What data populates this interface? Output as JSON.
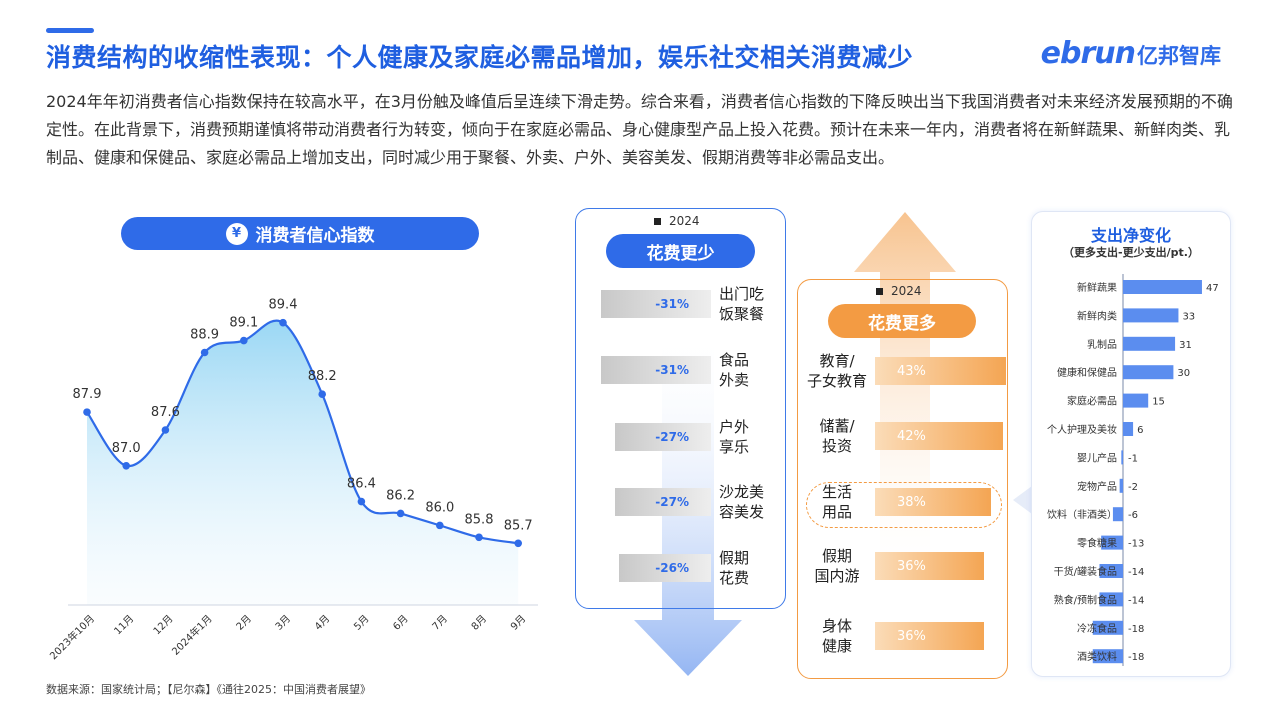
{
  "title": "消费结构的收缩性表现：个人健康及家庭必需品增加，娱乐社交相关消费减少",
  "logo": {
    "en": "ebrun",
    "cn": "亿邦智库"
  },
  "intro": "2024年年初消费者信心指数保持在较高水平，在3月份触及峰值后呈连续下滑走势。综合来看，消费者信心指数的下降反映出当下我国消费者对未来经济发展预期的不确定性。在此背景下，消费预期谨慎将带动消费者行为转变，倾向于在家庭必需品、身心健康型产品上投入花费。预计在未来一年内，消费者将在新鲜蔬果、新鲜肉类、乳制品、健康和保健品、家庭必需品上增加支出，同时减少用于聚餐、外卖、户外、美容美发、假期消费等非必需品支出。",
  "source": "数据来源：国家统计局；【尼尔森】《通往2025：中国消费者展望》",
  "colors": {
    "primary": "#2f6be8",
    "orange": "#f39b43"
  },
  "icons": {
    "confidence": "yuan-hand-icon"
  },
  "chart_data": [
    {
      "type": "area",
      "title": "消费者信心指数",
      "categories": [
        "2023年10月",
        "11月",
        "12月",
        "2024年1月",
        "2月",
        "3月",
        "4月",
        "5月",
        "6月",
        "7月",
        "8月",
        "9月"
      ],
      "values": [
        87.9,
        87.0,
        87.6,
        88.9,
        89.1,
        89.4,
        88.2,
        86.4,
        86.2,
        86.0,
        85.8,
        85.7
      ],
      "ylim": [
        85.0,
        90.2
      ]
    },
    {
      "type": "bar",
      "title": "花费更少",
      "year": "2024",
      "categories": [
        "出门吃饭聚餐",
        "食品外卖",
        "户外享乐",
        "沙龙美容美发",
        "假期花费"
      ],
      "category_lines": [
        [
          "出门吃",
          "饭聚餐"
        ],
        [
          "食品",
          "外卖"
        ],
        [
          "户外",
          "享乐"
        ],
        [
          "沙龙美",
          "容美发"
        ],
        [
          "假期",
          "花费"
        ]
      ],
      "values": [
        -31,
        -31,
        -27,
        -27,
        -26
      ],
      "labels": [
        "-31%",
        "-31%",
        "-27%",
        "-27%",
        "-26%"
      ]
    },
    {
      "type": "bar",
      "title": "花费更多",
      "year": "2024",
      "categories": [
        "教育/子女教育",
        "储蓄/投资",
        "生活用品",
        "假期国内游",
        "身体健康"
      ],
      "category_lines": [
        [
          "教育/",
          "子女教育"
        ],
        [
          "储蓄/",
          "投资"
        ],
        [
          "生活",
          "用品"
        ],
        [
          "假期",
          "国内游"
        ],
        [
          "身体",
          "健康"
        ]
      ],
      "values": [
        43,
        42,
        38,
        36,
        36
      ],
      "labels": [
        "43%",
        "42%",
        "38%",
        "36%",
        "36%"
      ]
    },
    {
      "type": "bar",
      "title": "支出净变化",
      "subtitle": "（更多支出-更少支出/pt.）",
      "categories": [
        "新鲜蔬果",
        "新鲜肉类",
        "乳制品",
        "健康和保健品",
        "家庭必需品",
        "个人护理及美妆",
        "婴儿产品",
        "宠物产品",
        "饮料（非酒类）",
        "零食糖果",
        "干货/罐装食品",
        "熟食/预制食品",
        "冷冻食品",
        "酒类饮料"
      ],
      "values": [
        47,
        33,
        31,
        30,
        15,
        6,
        -1,
        -2,
        -6,
        -13,
        -14,
        -14,
        -18,
        -18
      ]
    }
  ]
}
